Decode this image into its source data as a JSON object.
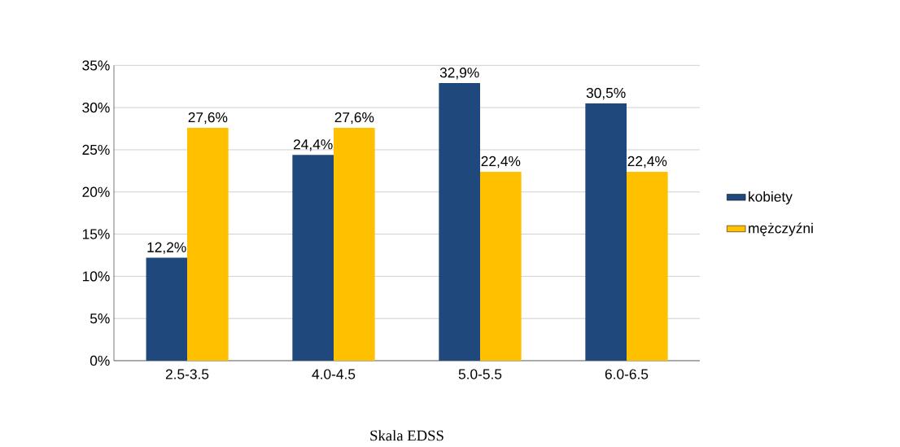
{
  "chart_data": {
    "type": "bar",
    "xlabel": "Skala EDSS",
    "categories": [
      "2.5-3.5",
      "4.0-4.5",
      "5.0-5.5",
      "6.0-6.5"
    ],
    "series": [
      {
        "name": "kobiety",
        "color": "#1f497d",
        "values": [
          12.2,
          24.4,
          32.9,
          30.5
        ],
        "value_labels": [
          "12,2%",
          "24,4%",
          "32,9%",
          "30,5%"
        ]
      },
      {
        "name": "mężczyźni",
        "color": "#ffc000",
        "values": [
          27.6,
          27.6,
          22.4,
          22.4
        ],
        "value_labels": [
          "27,6%",
          "27,6%",
          "22,4%",
          "22,4%"
        ]
      }
    ],
    "ylim": [
      0,
      35
    ],
    "yticks": [
      {
        "value": 0,
        "label": "0%"
      },
      {
        "value": 5,
        "label": "5%"
      },
      {
        "value": 10,
        "label": "10%"
      },
      {
        "value": 15,
        "label": "15%"
      },
      {
        "value": 20,
        "label": "20%"
      },
      {
        "value": 25,
        "label": "25%"
      },
      {
        "value": 30,
        "label": "30%"
      },
      {
        "value": 35,
        "label": "35%"
      }
    ],
    "grid": "y",
    "legend": "right"
  }
}
